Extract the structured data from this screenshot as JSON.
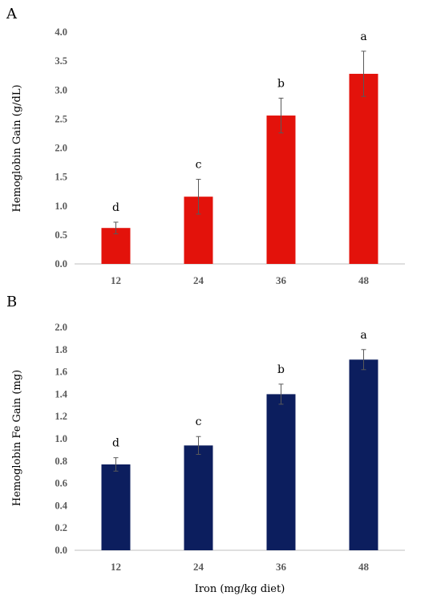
{
  "chart_data": [
    {
      "type": "bar",
      "panel": "A",
      "categories": [
        "12",
        "24",
        "36",
        "48"
      ],
      "values": [
        0.62,
        1.16,
        2.56,
        3.28
      ],
      "errors": [
        0.1,
        0.3,
        0.3,
        0.39
      ],
      "sig_letters": [
        "d",
        "c",
        "b",
        "a"
      ],
      "ylabel": "Hemoglobin Gain (g/dL)",
      "xlabel": "",
      "ylim": [
        0,
        4
      ],
      "yticks": [
        "0.0",
        "0.5",
        "1.0",
        "1.5",
        "2.0",
        "2.5",
        "3.0",
        "3.5",
        "4.0"
      ],
      "color": "#e3120b",
      "grid": false
    },
    {
      "type": "bar",
      "panel": "B",
      "categories": [
        "12",
        "24",
        "36",
        "48"
      ],
      "values": [
        0.77,
        0.94,
        1.4,
        1.71
      ],
      "errors": [
        0.06,
        0.08,
        0.09,
        0.09
      ],
      "sig_letters": [
        "d",
        "c",
        "b",
        "a"
      ],
      "ylabel": "Hemoglobin Fe Gain (mg)",
      "xlabel": "Iron (mg/kg diet)",
      "ylim": [
        0,
        2
      ],
      "yticks": [
        "0.0",
        "0.2",
        "0.4",
        "0.6",
        "0.8",
        "1.0",
        "1.2",
        "1.4",
        "1.6",
        "1.8",
        "2.0"
      ],
      "color": "#0c1e5e",
      "grid": false
    }
  ]
}
